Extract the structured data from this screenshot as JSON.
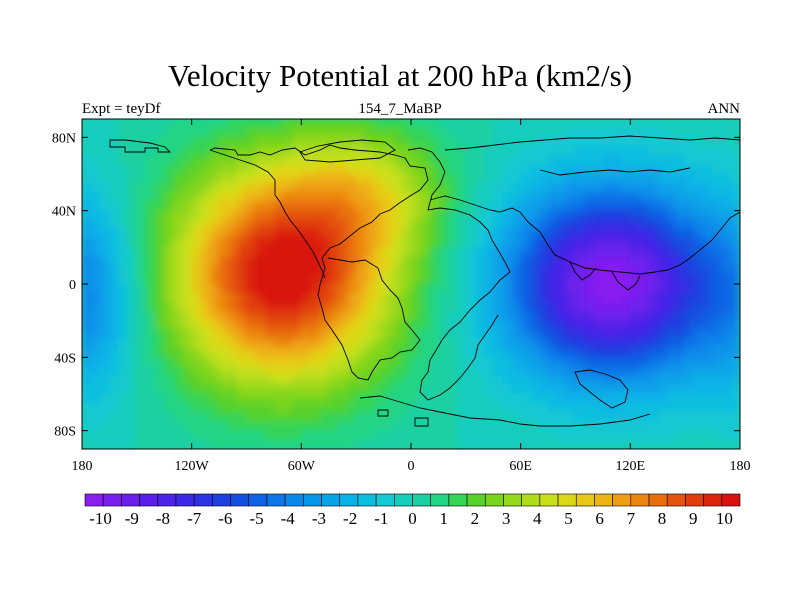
{
  "chart_data": {
    "type": "heatmap",
    "title": "Velocity Potential at 200 hPa (km2/s)",
    "subtitle_left": "Expt = teyDf",
    "subtitle_center": "154_7_MaBP",
    "subtitle_right": "ANN",
    "x_range": [
      -180,
      180
    ],
    "y_range": [
      -90,
      90
    ],
    "x_ticks": [
      {
        "value": -180,
        "label": "180"
      },
      {
        "value": -120,
        "label": "120W"
      },
      {
        "value": -60,
        "label": "60W"
      },
      {
        "value": 0,
        "label": "0"
      },
      {
        "value": 60,
        "label": "60E"
      },
      {
        "value": 120,
        "label": "120E"
      },
      {
        "value": 180,
        "label": "180"
      }
    ],
    "y_ticks": [
      {
        "value": 80,
        "label": "80N"
      },
      {
        "value": 40,
        "label": "40N"
      },
      {
        "value": 0,
        "label": "0"
      },
      {
        "value": -40,
        "label": "40S"
      },
      {
        "value": -80,
        "label": "80S"
      }
    ],
    "field_centers": [
      {
        "name": "positive-maximum",
        "lon": -70,
        "lat": 5,
        "value": 10.5
      },
      {
        "name": "negative-minimum",
        "lon": 110,
        "lat": 0,
        "value": -10.3
      }
    ],
    "colorbar": {
      "min": -10.5,
      "max": 10.5,
      "step": 0.5,
      "colors": [
        "#8a1ef0",
        "#7a1ef0",
        "#6c20ec",
        "#5a20ea",
        "#4a22e8",
        "#3c28e6",
        "#2d32e2",
        "#1e40e0",
        "#1450e0",
        "#1062e4",
        "#0c76e8",
        "#0a88ea",
        "#0896ea",
        "#08a4e8",
        "#08b2e6",
        "#0cbee0",
        "#16c8d2",
        "#16ccbc",
        "#1ad0a2",
        "#22d484",
        "#34d456",
        "#58d22a",
        "#78d41c",
        "#94d81a",
        "#b0dc1a",
        "#c8e01a",
        "#dcd818",
        "#e8c816",
        "#ecb414",
        "#ee9e12",
        "#ec8610",
        "#e86e0e",
        "#e4540e",
        "#e03c0e",
        "#dc240e",
        "#d8120e"
      ],
      "labels": [
        "-10",
        "-9",
        "-8",
        "-7",
        "-6",
        "-5",
        "-4",
        "-3",
        "-2",
        "-1",
        "0",
        "1",
        "2",
        "3",
        "4",
        "5",
        "6",
        "7",
        "8",
        "9",
        "10"
      ]
    }
  }
}
